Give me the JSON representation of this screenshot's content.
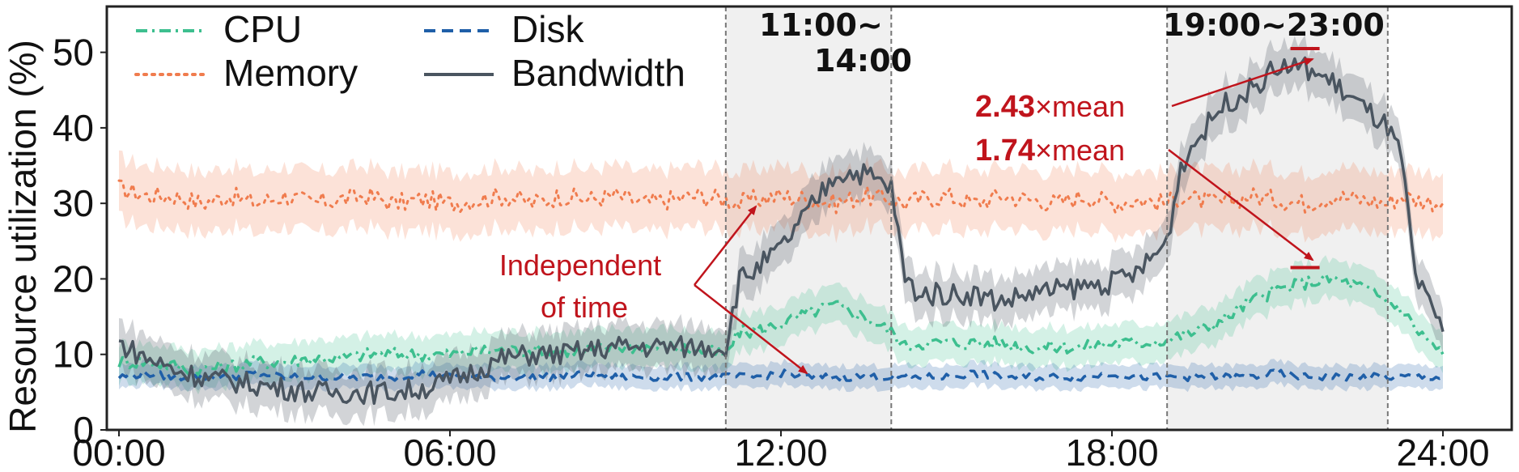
{
  "chart_data": {
    "type": "line",
    "title": "",
    "xlabel": "",
    "ylabel": "Resource utilization (%)",
    "xlim": [
      0,
      24
    ],
    "ylim": [
      0,
      55
    ],
    "xticks": [
      0,
      6,
      12,
      18,
      24
    ],
    "xtick_labels": [
      "00:00",
      "06:00",
      "12:00",
      "18:00",
      "24:00"
    ],
    "yticks": [
      0,
      10,
      20,
      30,
      40,
      50
    ],
    "ytick_labels": [
      "0",
      "10",
      "20",
      "30",
      "40",
      "50"
    ],
    "grid": false,
    "legend_position": "top-left",
    "x": [
      0,
      0.5,
      1,
      1.5,
      2,
      2.5,
      3,
      3.5,
      4,
      4.5,
      5,
      5.5,
      6,
      6.5,
      7,
      7.5,
      8,
      8.5,
      9,
      9.5,
      10,
      10.5,
      11,
      11.25,
      11.5,
      12,
      12.5,
      13,
      13.5,
      14,
      14.25,
      14.5,
      15,
      15.5,
      16,
      16.5,
      17,
      17.5,
      18,
      18.5,
      19,
      19.25,
      19.5,
      20,
      20.5,
      21,
      21.5,
      22,
      22.5,
      23,
      23.25,
      23.5,
      24
    ],
    "series": [
      {
        "name": "CPU",
        "color": "#3dbf8f",
        "dash": "dashdot",
        "band": 2.5,
        "values": [
          9,
          9,
          8.5,
          8,
          8.5,
          9,
          9,
          9.5,
          9.5,
          10,
          10,
          10,
          10,
          10.5,
          10.5,
          10.5,
          10.5,
          10.5,
          11,
          11,
          11,
          10.5,
          10,
          13,
          13,
          14,
          15.5,
          16.5,
          15,
          13,
          11,
          11.5,
          11.5,
          11.5,
          11.5,
          11,
          11,
          11,
          11.5,
          11.5,
          12,
          12.5,
          13,
          14.5,
          17,
          18.5,
          19.5,
          20,
          19,
          17,
          16,
          13.5,
          10
        ]
      },
      {
        "name": "Memory",
        "color": "#f07c4e",
        "dash": "dotted",
        "band": 4,
        "values": [
          32,
          31,
          31,
          30,
          31,
          30,
          31,
          30,
          30.5,
          31,
          30,
          30.5,
          30,
          30.5,
          31,
          30,
          31,
          30.5,
          31,
          30,
          30.5,
          31,
          30.5,
          30,
          30.5,
          31,
          30.5,
          30,
          31,
          30.5,
          30,
          30.5,
          31,
          30,
          31,
          30.5,
          30,
          31,
          30,
          30.5,
          30,
          31,
          30.5,
          30,
          31,
          30.5,
          30,
          31,
          30.5,
          30,
          31,
          30.5,
          30
        ]
      },
      {
        "name": "Disk",
        "color": "#1f5fa8",
        "dash": "dashed",
        "band": 1.5,
        "values": [
          7,
          7.5,
          7,
          7,
          7,
          7.5,
          7,
          7,
          7,
          7,
          7,
          7.5,
          7,
          7,
          7,
          7,
          7,
          7.5,
          7,
          7,
          7,
          7,
          7,
          7,
          7,
          7.5,
          7,
          7,
          7,
          7,
          7,
          7,
          7,
          7.5,
          7,
          7,
          7,
          7,
          7.5,
          7,
          7,
          7,
          7,
          7,
          7,
          7.5,
          7,
          7,
          7,
          7,
          7,
          7,
          7
        ]
      },
      {
        "name": "Bandwidth",
        "color": "#4a5560",
        "dash": "solid",
        "band": 3,
        "values": [
          11.5,
          9.5,
          8,
          7,
          6.5,
          6,
          5.5,
          5,
          5,
          5,
          5,
          5.5,
          6.5,
          8,
          9.5,
          10,
          10,
          10.5,
          11,
          11,
          11,
          11,
          11,
          20,
          21,
          24,
          29,
          34,
          34,
          32,
          20,
          18,
          18,
          18,
          17,
          18,
          18.5,
          19,
          19.5,
          21,
          25,
          35,
          38,
          43,
          45,
          48,
          48,
          46,
          43,
          40,
          36,
          20,
          13
        ]
      }
    ],
    "highlight_windows": [
      {
        "from": 11,
        "to": 14,
        "label": "11:00~\n14:00"
      },
      {
        "from": 19,
        "to": 23,
        "label": "19:00~23:00"
      }
    ],
    "markers": [
      {
        "x": 21.5,
        "y": 50.5
      },
      {
        "x": 21.5,
        "y": 21.5
      }
    ],
    "annotations": [
      {
        "text": "Independent\nof time"
      },
      {
        "strong": "2.43",
        "text": "×mean"
      },
      {
        "strong": "1.74",
        "text": "×mean"
      }
    ],
    "annotation_color": "#c0141c"
  }
}
